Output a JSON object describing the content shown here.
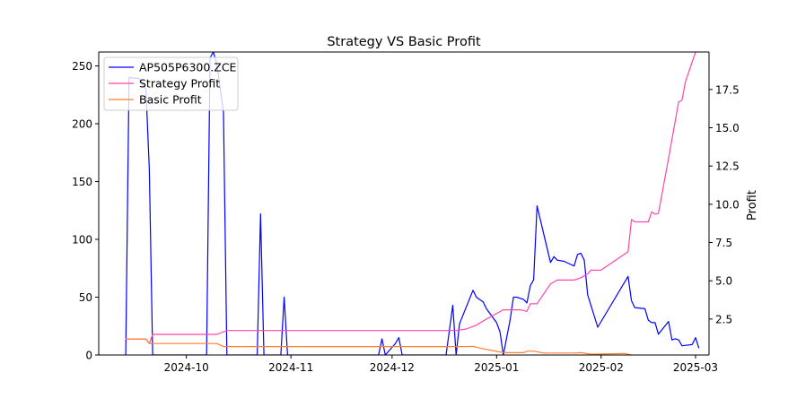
{
  "chart_data": {
    "type": "line",
    "title": "Strategy VS Basic Profit",
    "ylabel_right": "Profit",
    "xaxis": {
      "range": [
        "2024-09-05",
        "2025-03-05"
      ],
      "ticks": [
        {
          "date": "2024-10-01",
          "label": "2024-10"
        },
        {
          "date": "2024-11-01",
          "label": "2024-11"
        },
        {
          "date": "2024-12-01",
          "label": "2024-12"
        },
        {
          "date": "2025-01-01",
          "label": "2025-01"
        },
        {
          "date": "2025-02-01",
          "label": "2025-02"
        },
        {
          "date": "2025-03-01",
          "label": "2025-03"
        }
      ]
    },
    "left_axis": {
      "ylim": [
        0,
        262
      ],
      "ticks": [
        0,
        50,
        100,
        150,
        200,
        250
      ]
    },
    "right_axis": {
      "ylim": [
        0.15,
        19.95
      ],
      "ticks": [
        2.5,
        5.0,
        7.5,
        10.0,
        12.5,
        15.0,
        17.5
      ],
      "tick_labels": [
        "2.5",
        "5.0",
        "7.5",
        "10.0",
        "12.5",
        "15.0",
        "17.5"
      ]
    },
    "legend": {
      "position": "top-left"
    },
    "series": [
      {
        "name": "AP505P6300.ZCE",
        "axis": "left",
        "color": "#0000ff",
        "points": [
          [
            "2024-09-13",
            0
          ],
          [
            "2024-09-14",
            240
          ],
          [
            "2024-09-17",
            239
          ],
          [
            "2024-09-19",
            230
          ],
          [
            "2024-09-20",
            160
          ],
          [
            "2024-09-21",
            0
          ],
          [
            "2024-10-07",
            0
          ],
          [
            "2024-10-08",
            257
          ],
          [
            "2024-10-09",
            262
          ],
          [
            "2024-10-10",
            252
          ],
          [
            "2024-10-12",
            210
          ],
          [
            "2024-10-13",
            0
          ],
          [
            "2024-10-22",
            0
          ],
          [
            "2024-10-23",
            122
          ],
          [
            "2024-10-24",
            0
          ],
          [
            "2024-10-29",
            0
          ],
          [
            "2024-10-30",
            50
          ],
          [
            "2024-10-31",
            0
          ],
          [
            "2024-11-27",
            0
          ],
          [
            "2024-11-28",
            14
          ],
          [
            "2024-11-29",
            0
          ],
          [
            "2024-12-02",
            10
          ],
          [
            "2024-12-03",
            15
          ],
          [
            "2024-12-04",
            0
          ],
          [
            "2024-12-17",
            0
          ],
          [
            "2024-12-19",
            43
          ],
          [
            "2024-12-20",
            0
          ],
          [
            "2024-12-21",
            27
          ],
          [
            "2024-12-25",
            56
          ],
          [
            "2024-12-26",
            50
          ],
          [
            "2024-12-28",
            46
          ],
          [
            "2024-12-29",
            40
          ],
          [
            "2025-01-01",
            28
          ],
          [
            "2025-01-02",
            20
          ],
          [
            "2025-01-03",
            0
          ],
          [
            "2025-01-05",
            30
          ],
          [
            "2025-01-06",
            50
          ],
          [
            "2025-01-07",
            50
          ],
          [
            "2025-01-09",
            48
          ],
          [
            "2025-01-10",
            45
          ],
          [
            "2025-01-11",
            60
          ],
          [
            "2025-01-12",
            65
          ],
          [
            "2025-01-13",
            129
          ],
          [
            "2025-01-16",
            92
          ],
          [
            "2025-01-17",
            80
          ],
          [
            "2025-01-18",
            85
          ],
          [
            "2025-01-19",
            82
          ],
          [
            "2025-01-21",
            81
          ],
          [
            "2025-01-24",
            77
          ],
          [
            "2025-01-25",
            87
          ],
          [
            "2025-01-26",
            88
          ],
          [
            "2025-01-27",
            82
          ],
          [
            "2025-01-28",
            52
          ],
          [
            "2025-01-31",
            24
          ],
          [
            "2025-02-09",
            68
          ],
          [
            "2025-02-10",
            47
          ],
          [
            "2025-02-11",
            41
          ],
          [
            "2025-02-14",
            40
          ],
          [
            "2025-02-15",
            30
          ],
          [
            "2025-02-16",
            28
          ],
          [
            "2025-02-17",
            28
          ],
          [
            "2025-02-18",
            18
          ],
          [
            "2025-02-21",
            29
          ],
          [
            "2025-02-22",
            13
          ],
          [
            "2025-02-23",
            14
          ],
          [
            "2025-02-24",
            13
          ],
          [
            "2025-02-25",
            8
          ],
          [
            "2025-02-28",
            9
          ],
          [
            "2025-03-01",
            15
          ],
          [
            "2025-03-02",
            6
          ]
        ]
      },
      {
        "name": "Strategy Profit",
        "axis": "right",
        "color": "#ff44aa",
        "points": [
          [
            "2024-09-13",
            1.2
          ],
          [
            "2024-09-19",
            1.2
          ],
          [
            "2024-09-20",
            0.9
          ],
          [
            "2024-09-21",
            1.5
          ],
          [
            "2024-10-08",
            1.5
          ],
          [
            "2024-10-10",
            1.5
          ],
          [
            "2024-10-13",
            1.75
          ],
          [
            "2024-12-20",
            1.75
          ],
          [
            "2024-12-23",
            1.85
          ],
          [
            "2024-12-26",
            2.1
          ],
          [
            "2024-12-29",
            2.5
          ],
          [
            "2025-01-03",
            3.1
          ],
          [
            "2025-01-08",
            3.1
          ],
          [
            "2025-01-10",
            3.0
          ],
          [
            "2025-01-11",
            3.5
          ],
          [
            "2025-01-13",
            3.5
          ],
          [
            "2025-01-17",
            4.8
          ],
          [
            "2025-01-19",
            5.05
          ],
          [
            "2025-01-24",
            5.05
          ],
          [
            "2025-01-26",
            5.2
          ],
          [
            "2025-01-28",
            5.45
          ],
          [
            "2025-01-29",
            5.7
          ],
          [
            "2025-02-01",
            5.7
          ],
          [
            "2025-02-09",
            6.9
          ],
          [
            "2025-02-10",
            9.0
          ],
          [
            "2025-02-11",
            8.85
          ],
          [
            "2025-02-15",
            8.85
          ],
          [
            "2025-02-16",
            9.5
          ],
          [
            "2025-02-17",
            9.35
          ],
          [
            "2025-02-18",
            9.4
          ],
          [
            "2025-02-21",
            13.0
          ],
          [
            "2025-02-24",
            16.7
          ],
          [
            "2025-02-25",
            16.8
          ],
          [
            "2025-02-26",
            18.0
          ],
          [
            "2025-03-01",
            19.95
          ]
        ]
      },
      {
        "name": "Basic Profit",
        "axis": "right",
        "color": "#ff7f33",
        "points": [
          [
            "2024-09-13",
            1.2
          ],
          [
            "2024-09-19",
            1.2
          ],
          [
            "2024-09-20",
            0.9
          ],
          [
            "2024-10-10",
            0.9
          ],
          [
            "2024-10-12",
            0.7
          ],
          [
            "2024-12-23",
            0.7
          ],
          [
            "2024-12-25",
            0.72
          ],
          [
            "2024-12-27",
            0.6
          ],
          [
            "2025-01-02",
            0.35
          ],
          [
            "2025-01-04",
            0.3
          ],
          [
            "2025-01-09",
            0.3
          ],
          [
            "2025-01-10",
            0.4
          ],
          [
            "2025-01-12",
            0.4
          ],
          [
            "2025-01-15",
            0.28
          ],
          [
            "2025-01-24",
            0.28
          ],
          [
            "2025-01-26",
            0.3
          ],
          [
            "2025-01-29",
            0.2
          ],
          [
            "2025-02-08",
            0.25
          ],
          [
            "2025-02-10",
            0.15
          ],
          [
            "2025-02-19",
            0.12
          ],
          [
            "2025-03-02",
            0.12
          ]
        ]
      }
    ]
  }
}
